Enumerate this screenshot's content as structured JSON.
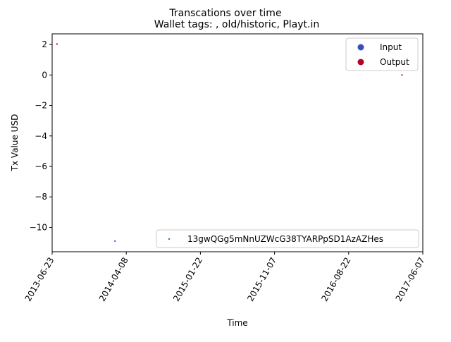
{
  "chart_data": {
    "type": "scatter",
    "title": "Transcations over time",
    "subtitle": "Wallet tags: , old/historic, Playt.in",
    "xlabel": "Time",
    "ylabel": "Tx Value USD",
    "x_type": "date",
    "xlim": [
      "2013-06-23",
      "2017-06-07"
    ],
    "ylim": [
      -11.6,
      2.7
    ],
    "x_ticks": [
      "2013-06-23",
      "2014-04-08",
      "2015-01-22",
      "2015-11-07",
      "2016-08-22",
      "2017-06-07"
    ],
    "y_ticks": [
      2,
      0,
      -2,
      -4,
      -6,
      -8,
      -10
    ],
    "grid": false,
    "colors": {
      "input": "#3b4cc0",
      "output": "#b40426",
      "address": "#1f77b4"
    },
    "legend": [
      {
        "label": "Input",
        "color": "#3b4cc0",
        "placement": "upper right"
      },
      {
        "label": "Output",
        "color": "#b40426",
        "placement": "upper right"
      }
    ],
    "address_legend": {
      "label": "13gwQGg5mNnUZWcG38TYARPpSD1AzAZHes",
      "color": "#1f77b4",
      "placement": "lower right"
    },
    "series": [
      {
        "name": "Input",
        "points": [
          {
            "x": "2014-02-23",
            "y": -10.9
          }
        ]
      },
      {
        "name": "Output",
        "points": [
          {
            "x": "2013-07-12",
            "y": 2.03
          },
          {
            "x": "2017-03-18",
            "y": 0.0
          }
        ]
      }
    ]
  }
}
